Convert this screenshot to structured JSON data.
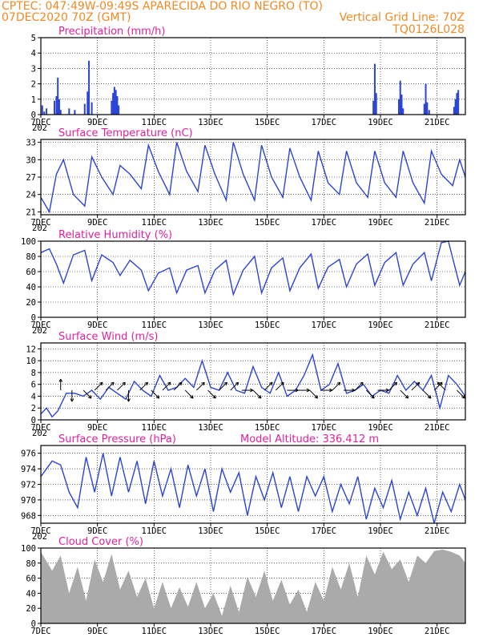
{
  "header": {
    "line1": "CPTEC:   047:49W-09:49S  APARECIDA DO RIO NEGRO (TO)",
    "line2": "07DEC2020 70Z (GMT)",
    "grid_note": "Vertical Grid Line: 70Z",
    "model_code": "TQ0126L028"
  },
  "x_axis": {
    "labels": [
      "7DEC",
      "9DEC",
      "11DEC",
      "13DEC",
      "15DEC",
      "17DEC",
      "19DEC",
      "21DEC"
    ],
    "start_day": 7,
    "end_day": 22,
    "stub": "202"
  },
  "colors": {
    "header": "#f08a24",
    "title": "#e0219c",
    "line": "#2b44d6",
    "cloud": "#aaaaaa"
  },
  "chart_data": [
    {
      "id": "precip",
      "type": "bar",
      "title": "Precipitation (mm/h)",
      "ylim": [
        0,
        5
      ],
      "yticks": [
        0,
        1,
        2,
        3,
        4,
        5
      ],
      "x": [
        7.05,
        7.12,
        7.2,
        7.48,
        7.55,
        7.6,
        7.65,
        7.7,
        8.0,
        8.2,
        8.55,
        8.65,
        8.7,
        8.8,
        9.5,
        9.55,
        9.6,
        9.65,
        9.7,
        9.75,
        18.75,
        18.8,
        18.85,
        19.65,
        19.7,
        19.75,
        19.8,
        20.55,
        20.6,
        20.65,
        20.72,
        21.6,
        21.65,
        21.7,
        21.75
      ],
      "values": [
        0.6,
        0.2,
        0.4,
        0.9,
        1.2,
        2.4,
        1.0,
        0.3,
        0.4,
        0.3,
        0.7,
        1.5,
        3.5,
        0.8,
        0.9,
        1.4,
        1.8,
        1.6,
        1.2,
        0.6,
        0.9,
        3.3,
        1.4,
        1.0,
        2.2,
        1.3,
        0.4,
        0.7,
        2.0,
        0.8,
        0.3,
        0.5,
        1.0,
        1.4,
        1.6
      ]
    },
    {
      "id": "temp",
      "type": "line",
      "title": "Surface Temperature (nC)",
      "ylim": [
        20.5,
        33.5
      ],
      "yticks": [
        21,
        24,
        27,
        30,
        33
      ],
      "x": [
        7.0,
        7.3,
        7.55,
        7.8,
        8.15,
        8.55,
        8.8,
        9.15,
        9.55,
        9.8,
        10.15,
        10.55,
        10.8,
        11.15,
        11.55,
        11.8,
        12.15,
        12.55,
        12.8,
        13.15,
        13.55,
        13.8,
        14.15,
        14.55,
        14.8,
        15.15,
        15.55,
        15.8,
        16.15,
        16.55,
        16.8,
        17.15,
        17.55,
        17.8,
        18.15,
        18.55,
        18.8,
        19.15,
        19.55,
        19.8,
        20.15,
        20.55,
        20.8,
        21.15,
        21.55,
        21.8,
        22.0
      ],
      "values": [
        23.5,
        21.0,
        27.5,
        30.0,
        24.0,
        22.0,
        30.5,
        27.0,
        24.0,
        29.0,
        27.5,
        25.0,
        32.5,
        28.0,
        24.0,
        33.0,
        28.0,
        24.5,
        32.5,
        27.5,
        23.0,
        33.0,
        27.5,
        23.0,
        32.5,
        27.0,
        23.5,
        32.0,
        27.0,
        23.0,
        31.5,
        26.0,
        24.0,
        31.5,
        26.0,
        23.5,
        31.5,
        26.0,
        23.5,
        31.5,
        26.0,
        22.5,
        31.5,
        27.5,
        25.5,
        30.0,
        27.0
      ]
    },
    {
      "id": "rh",
      "type": "line",
      "title": "Relative Humidity (%)",
      "ylim": [
        0,
        100
      ],
      "yticks": [
        0,
        20,
        40,
        60,
        80,
        100
      ],
      "x": [
        7.0,
        7.3,
        7.55,
        7.8,
        8.15,
        8.55,
        8.8,
        9.15,
        9.55,
        9.8,
        10.15,
        10.55,
        10.8,
        11.15,
        11.55,
        11.8,
        12.15,
        12.55,
        12.8,
        13.15,
        13.55,
        13.8,
        14.15,
        14.55,
        14.8,
        15.15,
        15.55,
        15.8,
        16.15,
        16.55,
        16.8,
        17.15,
        17.55,
        17.8,
        18.15,
        18.55,
        18.8,
        19.15,
        19.55,
        19.8,
        20.15,
        20.55,
        20.8,
        21.15,
        21.4,
        21.55,
        21.8,
        22.0
      ],
      "values": [
        85.0,
        90.0,
        70.0,
        45.0,
        82.0,
        88.0,
        48.0,
        82.0,
        72.0,
        55.0,
        75.0,
        62.0,
        35.0,
        58.0,
        65.0,
        32.0,
        62.0,
        68.0,
        32.0,
        62.0,
        75.0,
        30.0,
        62.0,
        80.0,
        32.0,
        65.0,
        78.0,
        35.0,
        65.0,
        83.0,
        38.0,
        66.0,
        76.0,
        40.0,
        70.0,
        83.0,
        42.0,
        72.0,
        85.0,
        42.0,
        70.0,
        85.0,
        48.0,
        98.0,
        100.0,
        78.0,
        42.0,
        60.0
      ]
    },
    {
      "id": "wind",
      "type": "line",
      "title": "Surface Wind (m/s)",
      "ylim": [
        0,
        13
      ],
      "yticks": [
        0,
        2,
        4,
        6,
        8,
        10,
        12
      ],
      "x": [
        7.0,
        7.2,
        7.4,
        7.6,
        7.9,
        8.2,
        8.5,
        8.8,
        9.1,
        9.4,
        9.7,
        10.0,
        10.3,
        10.6,
        10.9,
        11.2,
        11.5,
        11.8,
        12.1,
        12.4,
        12.7,
        13.0,
        13.3,
        13.6,
        13.9,
        14.2,
        14.5,
        14.8,
        15.1,
        15.4,
        15.7,
        16.0,
        16.3,
        16.6,
        16.9,
        17.2,
        17.5,
        17.8,
        18.1,
        18.4,
        18.7,
        19.0,
        19.3,
        19.6,
        19.9,
        20.2,
        20.5,
        20.8,
        21.1,
        21.4,
        21.7,
        22.0
      ],
      "values": [
        1.0,
        2.0,
        0.5,
        1.5,
        4.5,
        4.5,
        4.0,
        5.0,
        3.5,
        5.5,
        4.5,
        3.5,
        6.5,
        5.0,
        4.0,
        7.5,
        5.0,
        5.5,
        7.0,
        5.5,
        10.0,
        5.5,
        5.0,
        8.0,
        5.0,
        4.5,
        9.0,
        5.5,
        4.5,
        8.0,
        4.0,
        5.0,
        7.5,
        11.0,
        5.0,
        6.0,
        9.5,
        4.5,
        5.0,
        6.0,
        4.0,
        5.0,
        4.5,
        7.5,
        5.0,
        6.5,
        5.0,
        7.5,
        2.0,
        7.5,
        6.0,
        4.0
      ],
      "barbs_x": [
        7.7,
        8.1,
        8.5,
        8.9,
        9.3,
        9.7,
        10.1,
        10.5,
        10.9,
        11.3,
        11.7,
        12.1,
        12.5,
        12.9,
        13.3,
        13.7,
        14.1,
        14.5,
        14.9,
        15.3,
        15.7,
        16.1,
        16.5,
        16.9,
        17.3,
        17.7,
        18.1,
        18.5,
        18.9,
        19.3,
        19.7,
        20.1,
        20.5,
        20.9,
        21.3,
        21.7
      ],
      "barbs_u": [
        0.0,
        0.0,
        1.0,
        1.0,
        1.0,
        1.0,
        0.0,
        1.0,
        1.0,
        1.0,
        1.0,
        1.0,
        1.0,
        1.0,
        1.0,
        1.0,
        1.0,
        1.0,
        1.0,
        1.0,
        1.0,
        1.0,
        1.0,
        1.0,
        1.0,
        1.0,
        1.0,
        1.0,
        1.0,
        1.0,
        1.0,
        1.0,
        1.0,
        1.0,
        -1.0,
        1.0
      ],
      "barbs_v": [
        1.0,
        -1.0,
        -1.0,
        1.0,
        1.0,
        1.0,
        -1.0,
        1.0,
        -1.0,
        1.0,
        1.0,
        -1.0,
        1.0,
        -1.0,
        1.0,
        1.0,
        0.0,
        -1.0,
        1.0,
        1.0,
        0.0,
        0.0,
        -1.0,
        0.0,
        1.0,
        0.0,
        1.0,
        -1.0,
        0.0,
        1.0,
        -1.0,
        1.0,
        -1.0,
        1.0,
        1.0,
        -1.0
      ]
    },
    {
      "id": "pres",
      "type": "line",
      "title": "Surface Pressure (hPa)",
      "note": "Model Altitude: 336.412 m",
      "ylim": [
        967,
        977
      ],
      "yticks": [
        968,
        970,
        972,
        974,
        976
      ],
      "x": [
        7.0,
        7.4,
        7.7,
        8.0,
        8.3,
        8.6,
        8.9,
        9.2,
        9.5,
        9.8,
        10.1,
        10.4,
        10.7,
        11.0,
        11.3,
        11.6,
        11.9,
        12.2,
        12.5,
        12.8,
        13.1,
        13.4,
        13.7,
        14.0,
        14.3,
        14.6,
        14.9,
        15.2,
        15.5,
        15.8,
        16.1,
        16.4,
        16.7,
        17.0,
        17.3,
        17.6,
        17.9,
        18.2,
        18.5,
        18.8,
        19.1,
        19.4,
        19.7,
        20.0,
        20.3,
        20.6,
        20.9,
        21.2,
        21.5,
        21.8,
        22.0
      ],
      "values": [
        973.0,
        975.0,
        974.5,
        971.0,
        969.0,
        975.5,
        971.0,
        976.0,
        970.5,
        975.5,
        971.0,
        975.0,
        969.5,
        975.0,
        970.5,
        974.0,
        969.0,
        974.5,
        970.5,
        974.0,
        968.5,
        974.0,
        971.0,
        973.5,
        968.0,
        973.0,
        970.0,
        973.5,
        969.0,
        973.0,
        968.5,
        973.0,
        970.5,
        973.0,
        968.5,
        972.0,
        969.5,
        973.0,
        967.5,
        971.5,
        969.0,
        972.5,
        967.5,
        971.0,
        968.0,
        971.5,
        967.0,
        971.0,
        968.5,
        972.0,
        970.0
      ]
    },
    {
      "id": "cloud",
      "type": "area",
      "title": "Cloud Cover (%)",
      "ylim": [
        0,
        100
      ],
      "yticks": [
        0,
        20,
        40,
        60,
        80,
        100
      ],
      "x": [
        7.0,
        7.4,
        7.7,
        8.0,
        8.3,
        8.6,
        8.9,
        9.2,
        9.5,
        9.8,
        10.1,
        10.4,
        10.7,
        11.0,
        11.3,
        11.6,
        11.9,
        12.2,
        12.5,
        12.8,
        13.1,
        13.4,
        13.7,
        14.0,
        14.3,
        14.6,
        14.9,
        15.2,
        15.5,
        15.8,
        16.1,
        16.4,
        16.7,
        17.0,
        17.3,
        17.6,
        17.9,
        18.2,
        18.5,
        18.8,
        19.1,
        19.4,
        19.7,
        20.0,
        20.3,
        20.6,
        20.9,
        21.2,
        21.5,
        21.8,
        22.0
      ],
      "values": [
        95.0,
        70.0,
        90.0,
        40.0,
        75.0,
        30.0,
        85.0,
        55.0,
        92.0,
        45.0,
        70.0,
        35.0,
        60.0,
        20.0,
        55.0,
        20.0,
        48.0,
        22.0,
        55.0,
        20.0,
        40.0,
        10.0,
        50.0,
        15.0,
        62.0,
        35.0,
        70.0,
        30.0,
        58.0,
        25.0,
        45.0,
        15.0,
        55.0,
        30.0,
        75.0,
        45.0,
        80.0,
        35.0,
        90.0,
        65.0,
        95.0,
        72.0,
        85.0,
        55.0,
        90.0,
        80.0,
        96.0,
        98.0,
        95.0,
        90.0,
        80.0
      ]
    }
  ]
}
